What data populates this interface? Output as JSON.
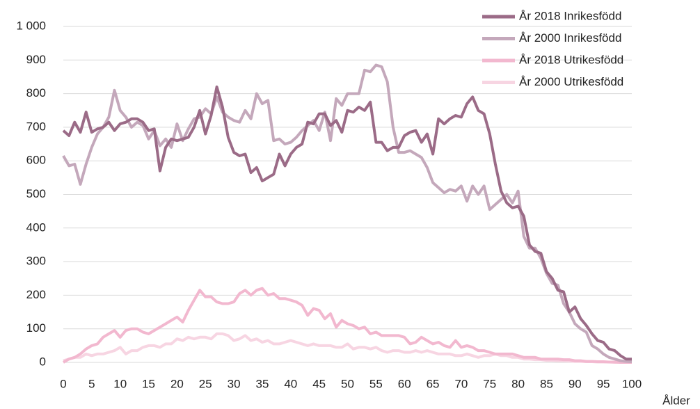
{
  "chart_data": {
    "type": "line",
    "x_label": "Ålder",
    "x": [
      0,
      1,
      2,
      3,
      4,
      5,
      6,
      7,
      8,
      9,
      10,
      11,
      12,
      13,
      14,
      15,
      16,
      17,
      18,
      19,
      20,
      21,
      22,
      23,
      24,
      25,
      26,
      27,
      28,
      29,
      30,
      31,
      32,
      33,
      34,
      35,
      36,
      37,
      38,
      39,
      40,
      41,
      42,
      43,
      44,
      45,
      46,
      47,
      48,
      49,
      50,
      51,
      52,
      53,
      54,
      55,
      56,
      57,
      58,
      59,
      60,
      61,
      62,
      63,
      64,
      65,
      66,
      67,
      68,
      69,
      70,
      71,
      72,
      73,
      74,
      75,
      76,
      77,
      78,
      79,
      80,
      81,
      82,
      83,
      84,
      85,
      86,
      87,
      88,
      89,
      90,
      91,
      92,
      93,
      94,
      95,
      96,
      97,
      98,
      99,
      100
    ],
    "xlim": [
      0,
      100
    ],
    "xticks": [
      0,
      5,
      10,
      15,
      20,
      25,
      30,
      35,
      40,
      45,
      50,
      55,
      60,
      65,
      70,
      75,
      80,
      85,
      90,
      95,
      100
    ],
    "ylim": [
      0,
      1000
    ],
    "yticks": [
      0,
      100,
      200,
      300,
      400,
      500,
      600,
      700,
      800,
      900,
      {
        "value": 1000,
        "label": "1 000"
      }
    ],
    "grid": true,
    "legend": "top-right",
    "series": [
      {
        "name": "År 2018 Inrikesfödd",
        "color": "#9b6b87",
        "values": [
          690,
          675,
          715,
          685,
          745,
          685,
          695,
          700,
          715,
          690,
          710,
          715,
          725,
          725,
          715,
          690,
          695,
          570,
          640,
          665,
          660,
          665,
          670,
          700,
          750,
          680,
          735,
          820,
          760,
          670,
          625,
          615,
          620,
          565,
          580,
          540,
          550,
          560,
          620,
          585,
          620,
          640,
          650,
          715,
          710,
          740,
          740,
          705,
          720,
          685,
          750,
          745,
          760,
          750,
          775,
          655,
          655,
          630,
          640,
          640,
          675,
          685,
          690,
          655,
          680,
          620,
          725,
          710,
          725,
          735,
          730,
          770,
          790,
          750,
          740,
          680,
          590,
          510,
          475,
          460,
          465,
          435,
          350,
          330,
          325,
          270,
          250,
          215,
          210,
          150,
          165,
          130,
          110,
          85,
          65,
          60,
          40,
          35,
          20,
          10,
          10
        ]
      },
      {
        "name": "År 2000 Inrikesfödd",
        "color": "#c4a8bb",
        "values": [
          615,
          585,
          590,
          530,
          590,
          640,
          680,
          700,
          730,
          810,
          750,
          730,
          700,
          715,
          705,
          665,
          690,
          645,
          665,
          640,
          710,
          660,
          695,
          725,
          730,
          755,
          740,
          790,
          745,
          730,
          720,
          715,
          750,
          725,
          800,
          770,
          780,
          660,
          665,
          650,
          655,
          670,
          690,
          705,
          720,
          690,
          745,
          660,
          785,
          765,
          800,
          800,
          800,
          870,
          865,
          885,
          880,
          835,
          700,
          625,
          625,
          630,
          620,
          610,
          580,
          535,
          520,
          505,
          515,
          510,
          525,
          480,
          525,
          500,
          525,
          455,
          470,
          485,
          500,
          475,
          510,
          375,
          340,
          340,
          310,
          265,
          235,
          230,
          175,
          150,
          115,
          100,
          90,
          50,
          40,
          25,
          15,
          10,
          5,
          3,
          2
        ]
      },
      {
        "name": "År 2018 Utrikesfödd",
        "color": "#f2b8cf",
        "values": [
          0,
          10,
          15,
          25,
          40,
          50,
          55,
          75,
          85,
          95,
          75,
          95,
          100,
          100,
          90,
          85,
          95,
          105,
          115,
          125,
          135,
          120,
          155,
          185,
          215,
          195,
          195,
          180,
          175,
          175,
          180,
          205,
          215,
          200,
          215,
          220,
          200,
          205,
          190,
          190,
          185,
          180,
          170,
          140,
          160,
          155,
          130,
          145,
          105,
          125,
          115,
          110,
          100,
          105,
          85,
          90,
          80,
          80,
          80,
          80,
          75,
          55,
          60,
          75,
          65,
          55,
          60,
          50,
          45,
          65,
          45,
          50,
          45,
          35,
          35,
          30,
          25,
          25,
          25,
          25,
          20,
          15,
          15,
          15,
          10,
          10,
          10,
          10,
          8,
          8,
          5,
          5,
          3,
          3,
          2,
          2,
          1,
          1,
          0,
          0,
          0
        ]
      },
      {
        "name": "År 2000 Utrikesfödd",
        "color": "#f7d5e2",
        "values": [
          5,
          10,
          15,
          15,
          25,
          20,
          25,
          25,
          30,
          35,
          45,
          25,
          35,
          35,
          45,
          50,
          50,
          45,
          55,
          55,
          70,
          65,
          75,
          70,
          75,
          75,
          70,
          85,
          85,
          80,
          65,
          70,
          80,
          65,
          70,
          60,
          65,
          55,
          55,
          60,
          65,
          60,
          55,
          50,
          55,
          50,
          50,
          50,
          45,
          45,
          55,
          40,
          45,
          45,
          40,
          45,
          35,
          30,
          35,
          35,
          30,
          30,
          35,
          30,
          35,
          30,
          25,
          25,
          25,
          20,
          20,
          25,
          20,
          15,
          20,
          20,
          25,
          20,
          20,
          15,
          15,
          10,
          10,
          8,
          8,
          6,
          6,
          5,
          5,
          4,
          3,
          3,
          2,
          2,
          1,
          1,
          1,
          0,
          0,
          0,
          0
        ]
      }
    ]
  }
}
